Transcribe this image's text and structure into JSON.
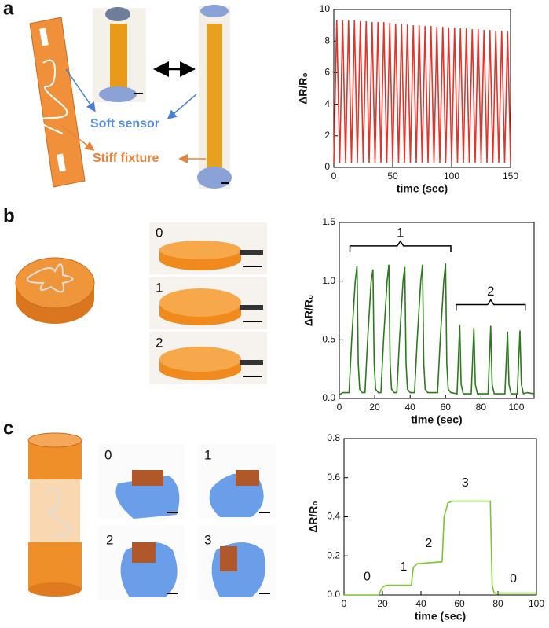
{
  "figure": {
    "panel_labels": [
      "a",
      "b",
      "c"
    ],
    "callouts": [
      "Soft sensor",
      "Stiff fixture"
    ],
    "photo_labels_b": [
      "0",
      "1",
      "2"
    ],
    "photo_labels_c": [
      "0",
      "1",
      "2",
      "3"
    ]
  },
  "chart_data": [
    {
      "type": "line",
      "xlabel": "time (sec)",
      "ylabel": "ΔR/R₀",
      "x": [
        0,
        2.5,
        5,
        7.5,
        10,
        12.5,
        15,
        17.5,
        20,
        22.5,
        25,
        27.5,
        30,
        32.5,
        35,
        37.5,
        40,
        42.5,
        45,
        47.5,
        50,
        52.5,
        55,
        57.5,
        60,
        62.5,
        65,
        67.5,
        70,
        72.5,
        75,
        77.5,
        80,
        82.5,
        85,
        87.5,
        90,
        92.5,
        95,
        97.5,
        100,
        102.5,
        105,
        107.5,
        110,
        112.5,
        115,
        117.5,
        120,
        122.5,
        125,
        127.5,
        130,
        132.5,
        135,
        137.5,
        140,
        142.5,
        145,
        147.5,
        150
      ],
      "series": [
        {
          "color": "#e2342a",
          "values": [
            0.3,
            9.3,
            0.3,
            9.3,
            0.3,
            9.3,
            0.3,
            9.3,
            0.3,
            9.25,
            0.3,
            9.25,
            0.3,
            9.2,
            0.3,
            9.2,
            0.3,
            9.2,
            0.3,
            9.15,
            0.3,
            9.1,
            0.3,
            9.1,
            0.3,
            9.05,
            0.3,
            9.0,
            0.3,
            9.0,
            0.3,
            8.95,
            0.3,
            8.95,
            0.3,
            8.9,
            0.3,
            8.9,
            0.3,
            8.85,
            0.3,
            8.85,
            0.3,
            8.8,
            0.3,
            8.8,
            0.3,
            8.75,
            0.3,
            8.75,
            0.3,
            8.7,
            0.3,
            8.7,
            0.3,
            8.65,
            0.3,
            8.65,
            0.3,
            8.6,
            0.3
          ]
        }
      ],
      "xlim": [
        0,
        150
      ],
      "xticks": [
        0,
        50,
        100,
        150
      ],
      "ylim": [
        0,
        10
      ],
      "yticks": [
        0,
        2,
        4,
        6,
        8,
        10
      ]
    },
    {
      "type": "line",
      "xlabel": "time (sec)",
      "ylabel": "ΔR/R₀",
      "x": [
        0,
        2,
        5.5,
        7,
        9,
        10,
        10.7,
        11.5,
        13,
        14.5,
        16,
        18,
        19,
        19.7,
        20.5,
        22,
        23.5,
        25,
        27,
        28,
        28.7,
        29.5,
        31,
        32.5,
        34,
        36,
        37,
        37.7,
        38.5,
        40,
        42.5,
        44,
        46,
        47,
        47.7,
        48.5,
        50,
        55.5,
        57,
        59,
        60,
        60.7,
        61.5,
        63,
        66.5,
        68,
        68.8,
        70,
        74.5,
        76,
        76.8,
        78,
        84,
        85.5,
        86.3,
        87.5,
        93.5,
        95,
        95.8,
        97,
        100.5,
        102,
        102.8,
        104,
        106,
        110
      ],
      "series": [
        {
          "color": "#2b7a1c",
          "values": [
            0.03,
            0.05,
            0.05,
            0.5,
            1.0,
            1.13,
            0.3,
            0.08,
            0.05,
            0.05,
            0.5,
            1.0,
            1.1,
            0.3,
            0.08,
            0.05,
            0.05,
            0.5,
            1.0,
            1.14,
            0.3,
            0.08,
            0.05,
            0.05,
            0.5,
            1.0,
            1.12,
            0.3,
            0.08,
            0.05,
            0.05,
            0.5,
            1.0,
            1.14,
            0.3,
            0.08,
            0.05,
            0.05,
            0.5,
            1.0,
            1.15,
            0.3,
            0.08,
            0.05,
            0.04,
            0.63,
            0.12,
            0.04,
            0.04,
            0.6,
            0.12,
            0.04,
            0.04,
            0.62,
            0.12,
            0.04,
            0.04,
            0.57,
            0.12,
            0.04,
            0.04,
            0.58,
            0.12,
            0.04,
            0.05,
            0.04
          ]
        }
      ],
      "xlim": [
        0,
        110
      ],
      "xticks": [
        0,
        20,
        40,
        60,
        80,
        100
      ],
      "ylim": [
        0,
        1.5
      ],
      "yticks": [
        {
          "value": 0,
          "label": "0.0"
        },
        {
          "value": 0.5,
          "label": "0.5"
        },
        {
          "value": 1,
          "label": "1.0"
        },
        {
          "value": 1.5,
          "label": "1.5"
        }
      ],
      "brackets": [
        {
          "text": "1",
          "x": [
            6,
            63
          ],
          "y": 1.3
        },
        {
          "text": "2",
          "x": [
            66,
            105
          ],
          "y": 0.8
        }
      ]
    },
    {
      "type": "line",
      "xlabel": "time (sec)",
      "ylabel": "ΔR/R₀",
      "x": [
        0,
        18,
        20,
        22,
        35,
        36,
        38,
        51,
        52,
        54,
        56,
        76,
        77,
        78,
        100
      ],
      "series": [
        {
          "color": "#7cc62f",
          "values": [
            0,
            0,
            0.04,
            0.05,
            0.05,
            0.14,
            0.16,
            0.17,
            0.4,
            0.47,
            0.48,
            0.48,
            0.05,
            0.01,
            0.01
          ]
        }
      ],
      "xlim": [
        0,
        100
      ],
      "xticks": [
        0,
        20,
        40,
        60,
        80,
        100
      ],
      "ylim": [
        0,
        0.8
      ],
      "yticks": [
        {
          "value": 0,
          "label": "0.0"
        },
        {
          "value": 0.2,
          "label": "0.2"
        },
        {
          "value": 0.4,
          "label": "0.4"
        },
        {
          "value": 0.6,
          "label": "0.6"
        },
        {
          "value": 0.8,
          "label": "0.8"
        }
      ],
      "step_labels": [
        {
          "text": "0",
          "x": 12,
          "y": 0.06
        },
        {
          "text": "1",
          "x": 31,
          "y": 0.11
        },
        {
          "text": "2",
          "x": 44,
          "y": 0.23
        },
        {
          "text": "3",
          "x": 63,
          "y": 0.54
        },
        {
          "text": "0",
          "x": 88,
          "y": 0.05
        }
      ]
    }
  ]
}
